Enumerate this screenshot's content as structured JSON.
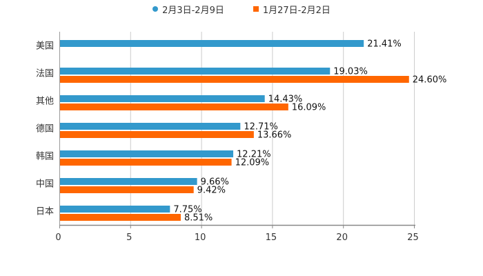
{
  "chart_data": {
    "type": "bar",
    "orientation": "horizontal",
    "categories": [
      "美国",
      "法国",
      "其他",
      "德国",
      "韩国",
      "中国",
      "日本"
    ],
    "series": [
      {
        "name": "2月3日-2月9日",
        "color": "#3399cc",
        "marker": "circle",
        "values": [
          21.41,
          19.03,
          14.43,
          12.71,
          12.21,
          9.66,
          7.75
        ]
      },
      {
        "name": "1月27日-2月2日",
        "color": "#ff6600",
        "marker": "square",
        "values": [
          null,
          24.6,
          16.09,
          13.66,
          12.09,
          9.42,
          8.51
        ]
      }
    ],
    "value_suffix": "%",
    "xlim": [
      0,
      25
    ],
    "xticks": [
      0,
      5,
      10,
      15,
      20,
      25
    ],
    "xtick_labels": [
      "0",
      "5",
      "10",
      "15",
      "20",
      "25"
    ],
    "grid": true,
    "legend_position": "top-center"
  }
}
